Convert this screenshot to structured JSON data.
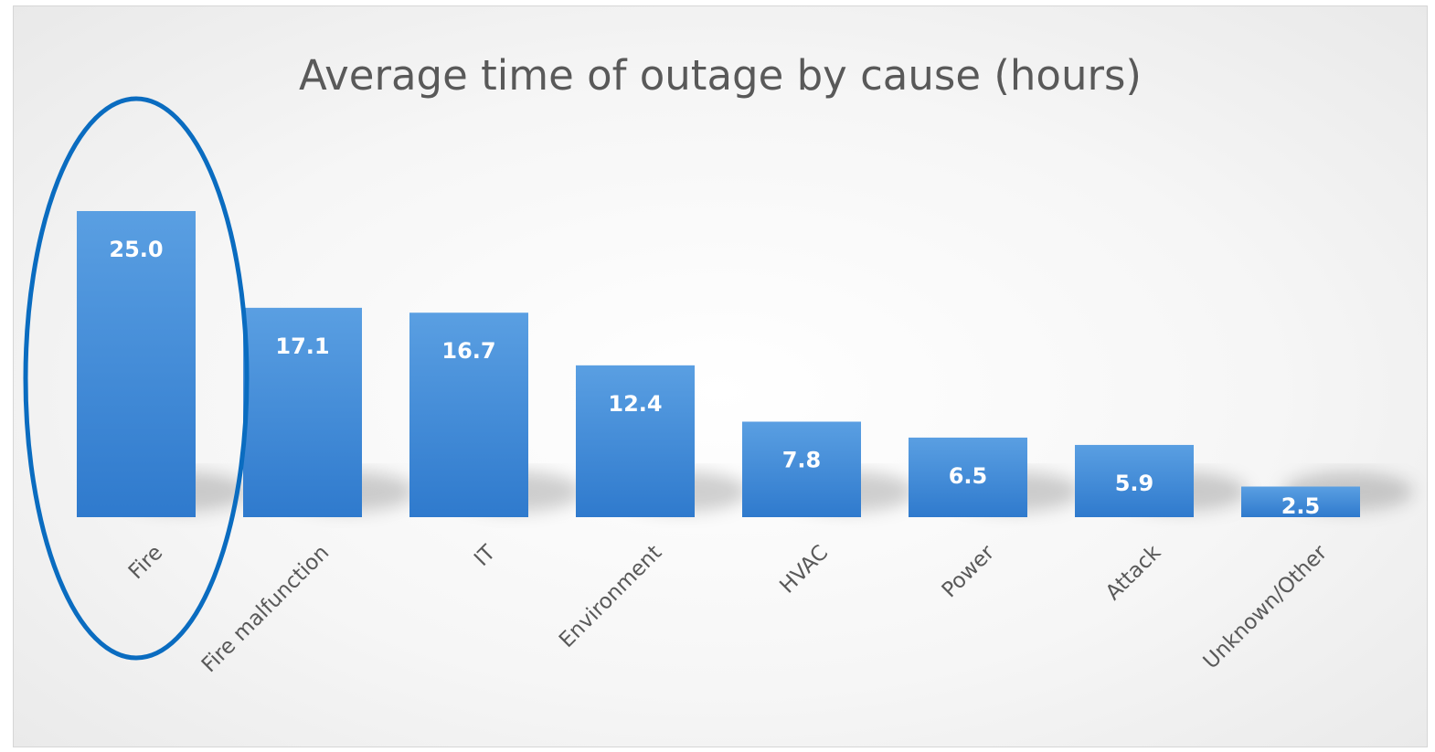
{
  "chart_data": {
    "type": "bar",
    "title": "Average time of outage by cause (hours)",
    "categories": [
      "Fire",
      "Fire malfunction",
      "IT",
      "Environment",
      "HVAC",
      "Power",
      "Attack",
      "Unknown/Other"
    ],
    "values": [
      25.0,
      17.1,
      16.7,
      12.4,
      7.8,
      6.5,
      5.9,
      2.5
    ],
    "value_labels": [
      "25.0",
      "17.1",
      "16.7",
      "12.4",
      "7.8",
      "6.5",
      "5.9",
      "2.5"
    ],
    "xlabel": "",
    "ylabel": "",
    "ylim": [
      0,
      25
    ],
    "grid": false,
    "legend": "none",
    "bar_color": "#3c86d6",
    "highlight": {
      "category": "Fire",
      "shape": "ellipse",
      "color": "#0a6cc0"
    }
  }
}
